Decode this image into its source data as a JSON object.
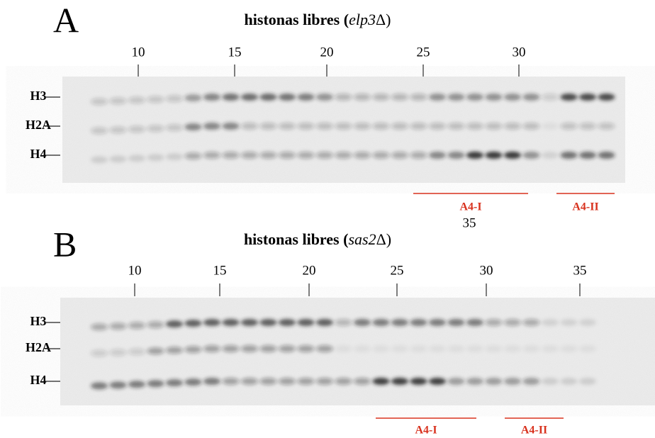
{
  "panels": [
    {
      "letter": "A",
      "title": {
        "text": "histonas libres (",
        "strain": "elp3",
        "suffix": "Δ)"
      },
      "fractions": [
        10,
        15,
        20,
        25,
        30
      ],
      "extra_fraction": 35,
      "bands": [
        "H3",
        "H2A",
        "H4"
      ],
      "pools": [
        "A4-I",
        "A4-II"
      ]
    },
    {
      "letter": "B",
      "title": {
        "text": "histonas libres (",
        "strain": "sas2",
        "suffix": "Δ)"
      },
      "fractions": [
        10,
        15,
        20,
        25,
        30,
        35
      ],
      "bands": [
        "H3",
        "H2A",
        "H4"
      ],
      "pools": [
        "A4-I",
        "A4-II"
      ]
    }
  ]
}
